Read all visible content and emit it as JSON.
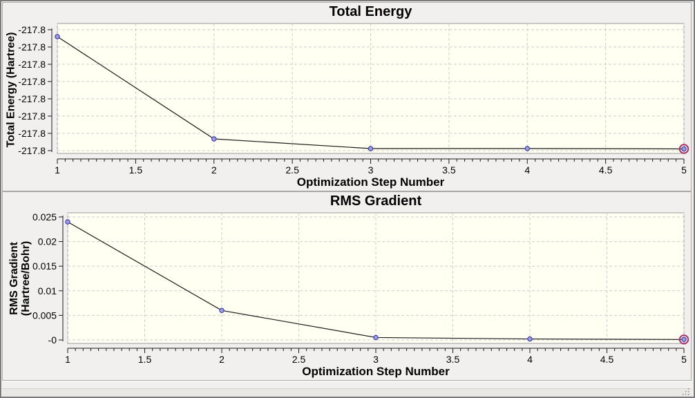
{
  "colors": {
    "plot_background": "#FFFFF2",
    "plot_border": "#9a9a9a",
    "grid_line": "#cdcdcd",
    "axis_line": "#1a1a1a",
    "series_line": "#1a1a1a",
    "marker_fill": "#9b9be8",
    "marker_stroke": "#2e2ea0",
    "selected_ring": "#b03068",
    "tick_text": "#000000"
  },
  "chart_data": [
    {
      "type": "line",
      "title": "Total Energy",
      "xlabel": "Optimization Step Number",
      "ylabel": "Total Energy (Hartree)",
      "x": [
        1,
        2,
        3,
        4,
        5
      ],
      "values_hartree": [
        -217.8,
        -217.8,
        -217.8,
        -217.8,
        -217.8
      ],
      "y_positions_in_tick_units_from_top_tick": [
        0.4,
        6.32,
        6.88,
        6.88,
        6.9
      ],
      "x_tick_labels": [
        "1",
        "1.5",
        "2",
        "2.5",
        "3",
        "3.5",
        "4",
        "4.5",
        "5"
      ],
      "y_tick_labels": [
        "-217.8",
        "-217.8",
        "-217.8",
        "-217.8",
        "-217.8",
        "-217.8",
        "-217.8",
        "-217.8"
      ],
      "xlim": [
        1,
        5
      ],
      "grid": "dashed",
      "legend": false,
      "selected_point_index": 4
    },
    {
      "type": "line",
      "title": "RMS Gradient",
      "xlabel": "Optimization Step Number",
      "ylabel_lines": [
        "RMS Gradient",
        "(Hartree/Bohr)"
      ],
      "x": [
        1,
        2,
        3,
        4,
        5
      ],
      "values": [
        0.024,
        0.006,
        0.0005,
        0.0002,
        0.0001
      ],
      "x_tick_labels": [
        "1",
        "1.5",
        "2",
        "2.5",
        "3",
        "3.5",
        "4",
        "4.5",
        "5"
      ],
      "y_tick_labels": [
        "0.025",
        "0.02",
        "0.015",
        "0.01",
        "0.005",
        "-0"
      ],
      "xlim": [
        1,
        5
      ],
      "ylim": [
        0,
        0.025
      ],
      "grid": "dashed",
      "legend": false,
      "selected_point_index": 4
    }
  ],
  "icons": {
    "resize_grip": "diagonal-dots"
  }
}
